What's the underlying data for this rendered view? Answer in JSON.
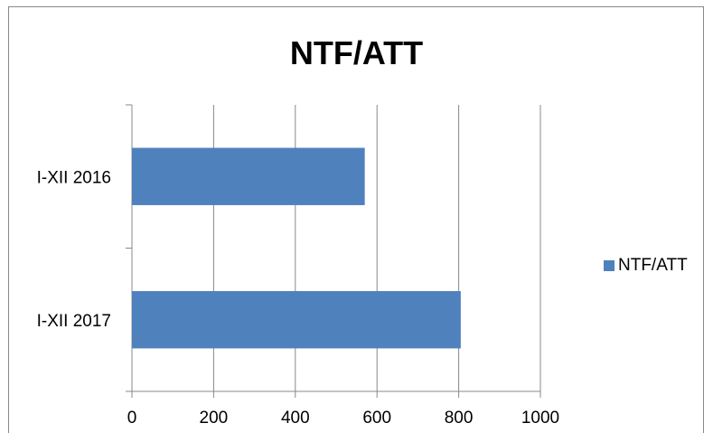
{
  "chart_data": {
    "type": "bar",
    "orientation": "horizontal",
    "title": "NTF/ATT",
    "categories": [
      "I-XII 2016",
      "I-XII 2017"
    ],
    "series": [
      {
        "name": "NTF/ATT",
        "values": [
          570,
          805
        ],
        "color": "#4f81bd"
      }
    ],
    "xlim": [
      0,
      1000
    ],
    "xticks": [
      0,
      200,
      400,
      600,
      800,
      1000
    ],
    "grid": true,
    "legend_position": "right"
  }
}
